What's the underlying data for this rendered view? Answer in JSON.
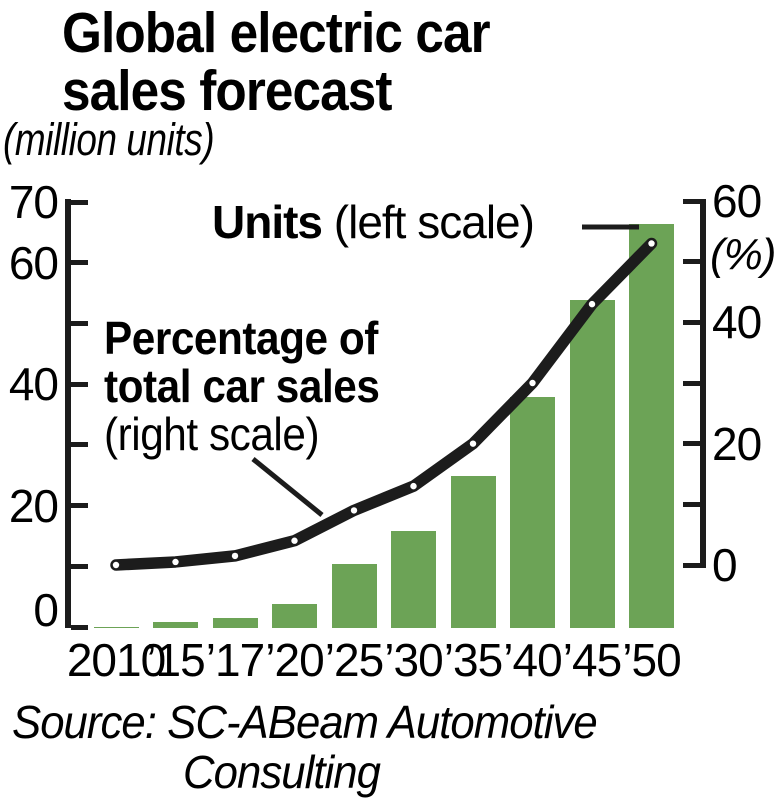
{
  "title": {
    "line1": "Global electric car",
    "line2": "sales forecast"
  },
  "subtitle": "(million units)",
  "annotations": {
    "units_bold": "Units",
    "units_rest": " (left scale)",
    "pct_line1": "Percentage of",
    "pct_line2": "total car sales",
    "pct_line3": "(right scale)"
  },
  "source": {
    "line1": "Source: SC-ABeam Automotive",
    "line2": "Consulting"
  },
  "chart_data": {
    "type": "bar+line",
    "categories": [
      "2010",
      "’15",
      "’17",
      "’20",
      "’25",
      "’30",
      "’35",
      "’40",
      "’45",
      "’50"
    ],
    "series": [
      {
        "name": "Units (left scale)",
        "type": "bar",
        "axis": "left",
        "unit": "million units",
        "values": [
          0.2,
          1,
          1.6,
          4,
          10.5,
          16,
          25,
          38,
          54,
          66.5
        ]
      },
      {
        "name": "Percentage of total car sales (right scale)",
        "type": "line",
        "axis": "right",
        "unit": "%",
        "values": [
          0,
          0.5,
          1.5,
          4,
          9,
          13,
          20,
          30,
          43,
          53
        ]
      }
    ],
    "left_axis": {
      "min": 0,
      "max": 70,
      "tick_step": 10,
      "labels": [
        "70",
        "60",
        "40",
        "20",
        "0"
      ]
    },
    "right_axis": {
      "min": 0,
      "max": 60,
      "tick_step": 10,
      "labels": [
        "60",
        "40",
        "20",
        "0"
      ],
      "unit_label": "(%)"
    },
    "grid": false,
    "colors": {
      "bar": "#6ca356",
      "line": "#1c1c1c",
      "point_dot": "#ffffff"
    }
  }
}
